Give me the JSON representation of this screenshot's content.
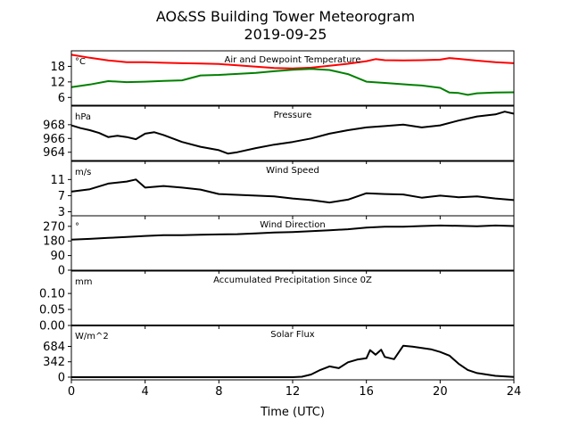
{
  "figure": {
    "title_line1": "AO&SS Building Tower Meteorogram",
    "title_line2": "2019-09-25",
    "xlabel": "Time (UTC)"
  },
  "chart_data": [
    {
      "type": "line",
      "title": "Air and Dewpoint Temperature",
      "unit": "°C",
      "xlim": [
        0,
        24
      ],
      "ylim": [
        3,
        24
      ],
      "yticks": [
        "6",
        "12",
        "18"
      ],
      "series": [
        {
          "color": "#ff0000",
          "x": [
            0,
            1,
            2,
            3,
            4,
            5,
            6,
            7,
            8,
            9,
            10,
            11,
            12,
            13,
            14,
            15,
            16,
            16.5,
            17,
            18,
            19,
            20,
            20.5,
            21,
            22,
            23,
            24
          ],
          "y": [
            22.5,
            21.3,
            20.3,
            19.6,
            19.6,
            19.4,
            19.2,
            19.1,
            18.9,
            18.4,
            17.9,
            17.4,
            17.2,
            17.5,
            18.2,
            19.0,
            20.0,
            20.8,
            20.4,
            20.3,
            20.4,
            20.6,
            21.2,
            20.9,
            20.2,
            19.6,
            19.2
          ]
        },
        {
          "color": "#008000",
          "x": [
            0,
            1,
            2,
            3,
            4,
            5,
            6,
            7,
            8,
            9,
            10,
            11,
            12,
            13,
            14,
            15,
            16,
            17,
            18,
            18.5,
            19,
            20,
            20.5,
            21,
            21.5,
            22,
            23,
            24
          ],
          "y": [
            10.0,
            11.0,
            12.3,
            11.9,
            12.1,
            12.4,
            12.6,
            14.5,
            14.7,
            15.1,
            15.5,
            16.1,
            16.7,
            17.0,
            16.6,
            15.0,
            12.1,
            11.6,
            11.1,
            10.8,
            10.6,
            9.7,
            7.9,
            7.7,
            7.0,
            7.6,
            7.9,
            8.0
          ]
        }
      ]
    },
    {
      "type": "line",
      "title": "Pressure",
      "unit": "hPa",
      "xlim": [
        0,
        24
      ],
      "ylim": [
        962.8,
        970.7
      ],
      "yticks": [
        "964",
        "966",
        "968"
      ],
      "series": [
        {
          "color": "#000000",
          "x": [
            0,
            0.5,
            1,
            1.5,
            2,
            2.5,
            3,
            3.5,
            4,
            4.5,
            5,
            6,
            7,
            8,
            8.5,
            9,
            10,
            11,
            12,
            13,
            14,
            15,
            16,
            17,
            18,
            19,
            20,
            21,
            22,
            23,
            23.5,
            24
          ],
          "y": [
            967.9,
            967.5,
            967.2,
            966.8,
            966.2,
            966.4,
            966.2,
            965.9,
            966.7,
            966.9,
            966.5,
            965.5,
            964.8,
            964.3,
            963.8,
            964.0,
            964.6,
            965.1,
            965.5,
            966.0,
            966.7,
            967.2,
            967.6,
            967.8,
            968.0,
            967.6,
            967.9,
            968.6,
            969.2,
            969.5,
            969.9,
            969.6
          ]
        }
      ]
    },
    {
      "type": "line",
      "title": "Wind Speed",
      "unit": "m/s",
      "xlim": [
        0,
        24
      ],
      "ylim": [
        2,
        15.5
      ],
      "yticks": [
        "3",
        "7",
        "11"
      ],
      "series": [
        {
          "color": "#000000",
          "x": [
            0,
            1,
            2,
            3,
            3.5,
            4,
            5,
            6,
            7,
            8,
            9,
            10,
            11,
            12,
            13,
            14,
            15,
            16,
            17,
            18,
            19,
            20,
            21,
            22,
            23,
            24
          ],
          "y": [
            8.0,
            8.6,
            10.0,
            10.5,
            11.0,
            9.0,
            9.4,
            9.0,
            8.5,
            7.4,
            7.2,
            7.0,
            6.8,
            6.3,
            5.9,
            5.3,
            6.0,
            7.6,
            7.4,
            7.3,
            6.5,
            7.0,
            6.6,
            6.8,
            6.3,
            5.9
          ]
        }
      ]
    },
    {
      "type": "line",
      "title": "Wind Direction",
      "unit": "°",
      "xlim": [
        0,
        24
      ],
      "ylim": [
        0,
        335
      ],
      "yticks": [
        "0",
        "90",
        "180",
        "270"
      ],
      "series": [
        {
          "color": "#000000",
          "x": [
            0,
            1,
            2,
            3,
            4,
            5,
            6,
            7,
            8,
            9,
            10,
            11,
            12,
            13,
            14,
            15,
            16,
            17,
            18,
            19,
            20,
            21,
            22,
            23,
            24
          ],
          "y": [
            188,
            193,
            199,
            205,
            211,
            216,
            216,
            218,
            220,
            222,
            226,
            232,
            235,
            240,
            246,
            252,
            262,
            268,
            268,
            272,
            275,
            273,
            270,
            275,
            272
          ]
        }
      ]
    },
    {
      "type": "line",
      "title": "Accumulated Precipitation Since 0Z",
      "unit": "mm",
      "xlim": [
        0,
        24
      ],
      "ylim": [
        0,
        0.17
      ],
      "yticks": [
        "0.00",
        "0.05",
        "0.10"
      ],
      "series": [
        {
          "color": "#000000",
          "x": [
            0,
            24
          ],
          "y": [
            0,
            0
          ]
        }
      ]
    },
    {
      "type": "line",
      "title": "Solar Flux",
      "unit": "W/m^2",
      "xlim": [
        0,
        24
      ],
      "ylim": [
        -60,
        1150
      ],
      "yticks": [
        "0",
        "342",
        "684"
      ],
      "series": [
        {
          "color": "#000000",
          "x": [
            0,
            12,
            12.5,
            13,
            13.5,
            14,
            14.5,
            15,
            15.5,
            16,
            16.2,
            16.5,
            16.8,
            17,
            17.5,
            18,
            18.5,
            19,
            19.5,
            20,
            20.5,
            21,
            21.5,
            22,
            23,
            24
          ],
          "y": [
            0,
            0,
            10,
            60,
            160,
            240,
            200,
            330,
            390,
            420,
            600,
            500,
            610,
            450,
            400,
            700,
            680,
            650,
            620,
            560,
            480,
            300,
            160,
            90,
            30,
            5
          ]
        }
      ]
    }
  ],
  "xaxis": {
    "ticks": [
      "0",
      "4",
      "8",
      "12",
      "16",
      "20",
      "24"
    ]
  }
}
